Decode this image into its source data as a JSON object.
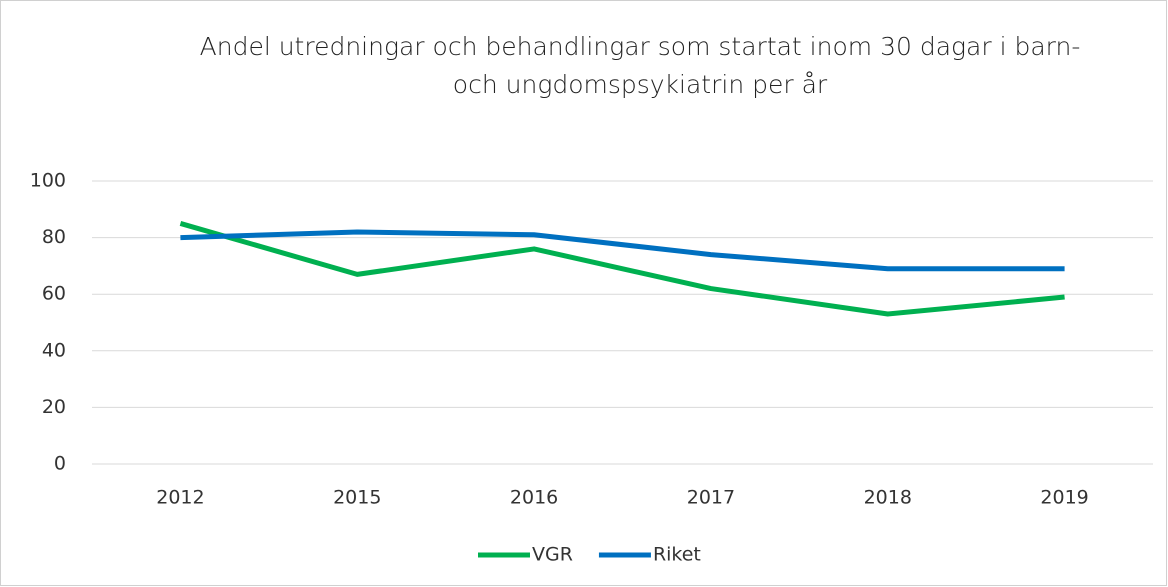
{
  "chart_data": {
    "type": "line",
    "title": "Andel utredningar och behandlingar som startat inom 30 dagar i barn- och ungdomspsykiatrin per år",
    "categories": [
      "2012",
      "2015",
      "2016",
      "2017",
      "2018",
      "2019"
    ],
    "series": [
      {
        "name": "VGR",
        "color": "#00b050",
        "values": [
          85,
          67,
          76,
          62,
          53,
          59
        ]
      },
      {
        "name": "Riket",
        "color": "#0070c0",
        "values": [
          80,
          82,
          81,
          74,
          69,
          69
        ]
      }
    ],
    "ylim": [
      0,
      100
    ],
    "yticks": [
      0,
      20,
      40,
      60,
      80,
      100
    ],
    "grid": true,
    "legend": "bottom"
  }
}
